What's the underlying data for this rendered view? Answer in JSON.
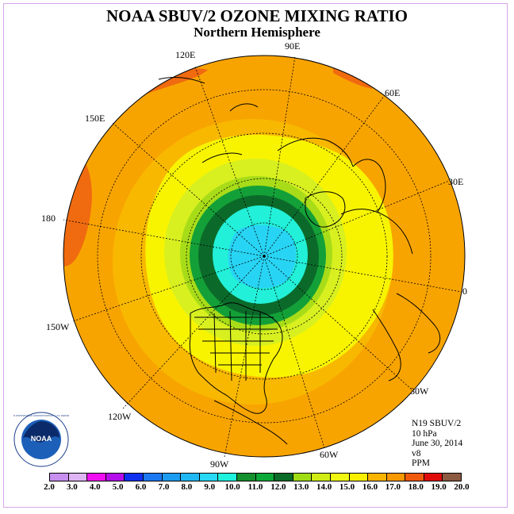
{
  "title": "NOAA SBUV/2 OZONE MIXING RATIO",
  "subtitle": "Northern Hemisphere",
  "longitude_labels": {
    "e120": "120E",
    "e90": "90E",
    "e60": "60E",
    "e30": "30E",
    "zero": "0",
    "w30": "30W",
    "w60": "60W",
    "w90": "90W",
    "w120": "120W",
    "w150": "150W",
    "lon180": "180",
    "e150": "150E"
  },
  "info": {
    "instrument": "N19 SBUV/2",
    "pressure": "10 hPa",
    "date": "June 30, 2014",
    "version": "v8",
    "units": "PPM"
  },
  "colorbar": {
    "colors": [
      "#c78ff0",
      "#dfb4f4",
      "#f20ef2",
      "#b40eea",
      "#1030f0",
      "#1c78f0",
      "#1c9cf0",
      "#20b8f4",
      "#28d8f4",
      "#1ef2dc",
      "#14902c",
      "#0ca838",
      "#0a6c28",
      "#a0dc14",
      "#d0ec14",
      "#f0f812",
      "#f8f000",
      "#f8b400",
      "#f89800",
      "#f05a0c",
      "#e00c0c",
      "#8c5a40"
    ],
    "labels": [
      "2.0",
      "3.0",
      "4.0",
      "5.0",
      "6.0",
      "7.0",
      "8.0",
      "9.0",
      "10.0",
      "11.0",
      "12.0",
      "13.0",
      "14.0",
      "15.0",
      "16.0",
      "17.0",
      "18.0",
      "19.0",
      "20.0"
    ]
  },
  "logo": {
    "text": "NOAA",
    "ring_text": "NATIONAL OCEANIC AND ATMOSPHERIC ADMINISTRATION · U.S. DEPARTMENT OF COMMERCE"
  }
}
